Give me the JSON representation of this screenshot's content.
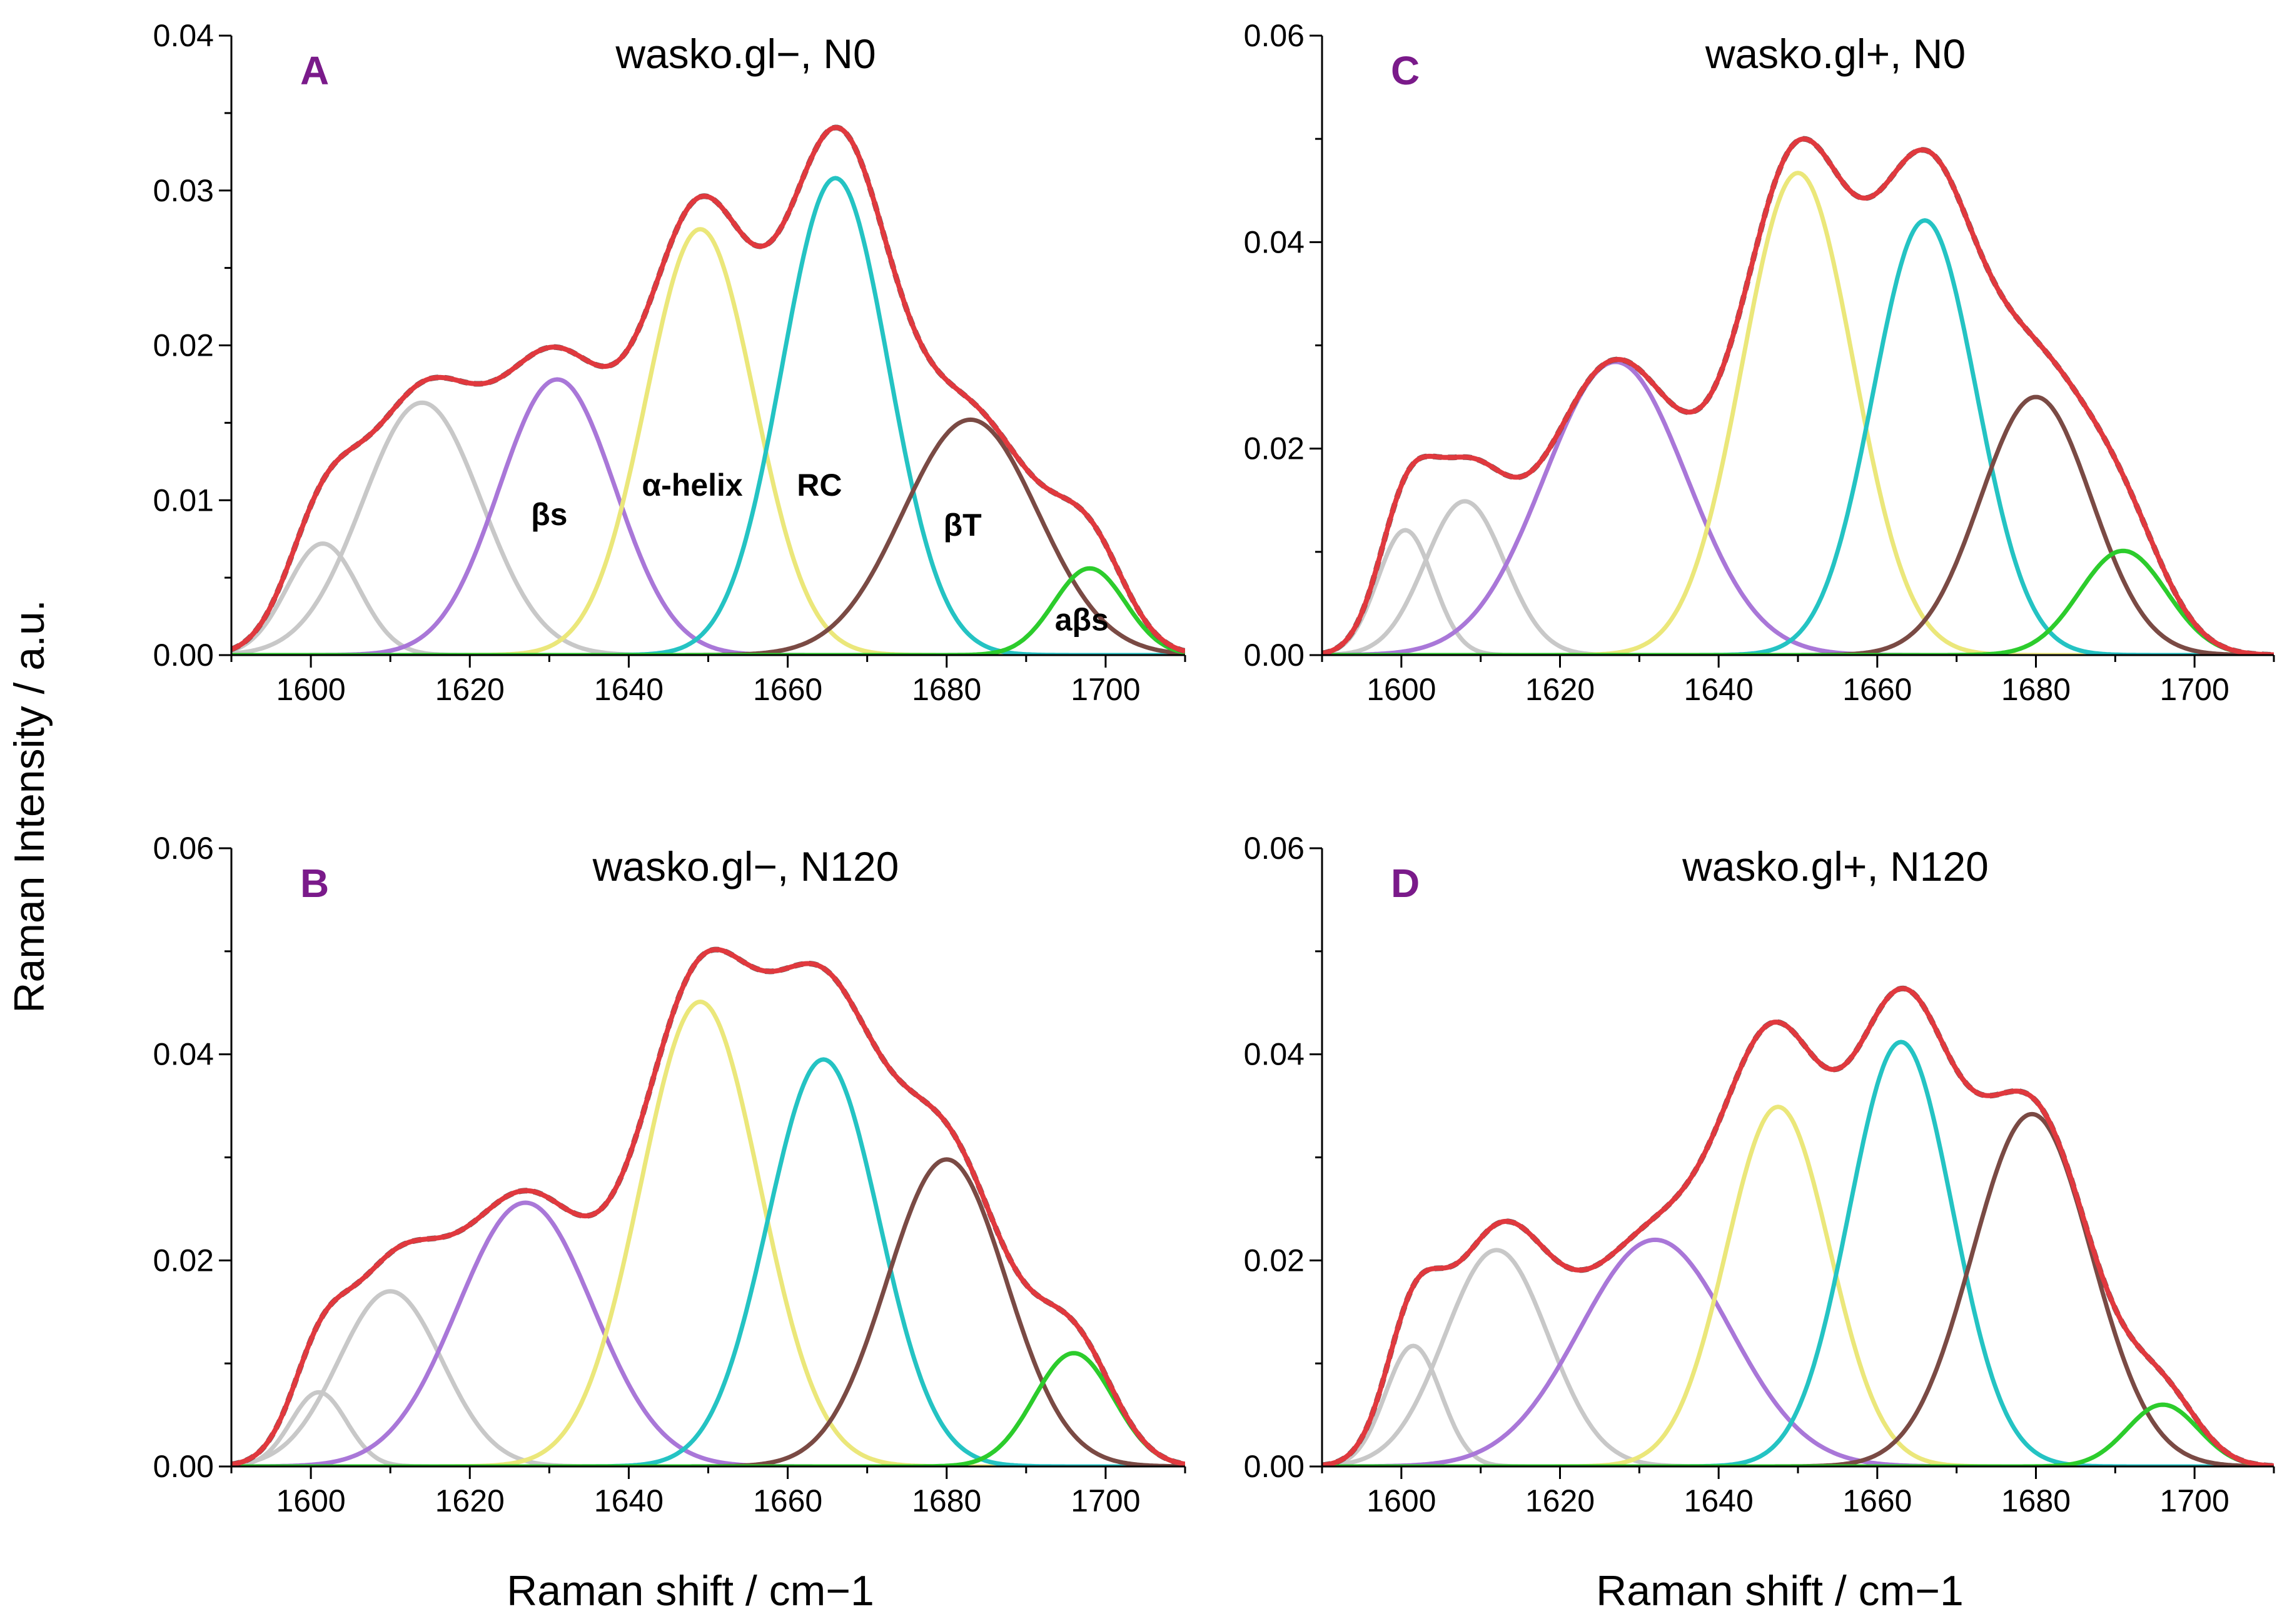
{
  "figure": {
    "ylabel": "Raman Intensity / a.u.",
    "xlabel": "Raman shift / cm−1",
    "colors": {
      "envelope": "#e0393e",
      "measured": "#555555",
      "band_gray": "#c8c8c8",
      "band_bs": "#a977d8",
      "band_ahelix": "#ebe77a",
      "band_rc": "#24c3c3",
      "band_bt": "#7a4a44",
      "band_abs": "#2ccc2c",
      "letter": "#7a1a8a"
    }
  },
  "chart_data": [
    {
      "type": "line",
      "panel": "A",
      "title": "wasko.gl−, N0",
      "xlim": [
        1590,
        1710
      ],
      "ylim": [
        0,
        0.04
      ],
      "yticks": [
        "0.00",
        "0.01",
        "0.02",
        "0.03",
        "0.04"
      ],
      "xticks": [
        "1600",
        "1620",
        "1640",
        "1660",
        "1680",
        "1700"
      ],
      "xtick_values": [
        1600,
        1620,
        1640,
        1660,
        1680,
        1700
      ],
      "ytick_values": [
        0,
        0.01,
        0.02,
        0.03,
        0.04
      ],
      "band_labels": [
        {
          "text": "βs",
          "x": 1630,
          "y": 0.0084
        },
        {
          "text": "α-helix",
          "x": 1648,
          "y": 0.0103
        },
        {
          "text": "RC",
          "x": 1664,
          "y": 0.0103
        },
        {
          "text": "βT",
          "x": 1682,
          "y": 0.0077
        },
        {
          "text": "aβs",
          "x": 1697,
          "y": 0.0016
        }
      ],
      "series": [
        {
          "name": "band-1",
          "color_key": "band_gray",
          "center": 1601.5,
          "height": 0.0072,
          "sigma": 4.5
        },
        {
          "name": "band-2",
          "color_key": "band_gray",
          "center": 1614,
          "height": 0.0163,
          "sigma": 7.5
        },
        {
          "name": "beta-sheet",
          "color_key": "band_bs",
          "center": 1631,
          "height": 0.0178,
          "sigma": 7.3
        },
        {
          "name": "alpha-helix",
          "color_key": "band_ahelix",
          "center": 1649,
          "height": 0.0275,
          "sigma": 6.8
        },
        {
          "name": "random-coil",
          "color_key": "band_rc",
          "center": 1666,
          "height": 0.0308,
          "sigma": 6.7
        },
        {
          "name": "beta-turn",
          "color_key": "band_bt",
          "center": 1683,
          "height": 0.0152,
          "sigma": 8.5
        },
        {
          "name": "anti-beta-sheet",
          "color_key": "band_abs",
          "center": 1698,
          "height": 0.0056,
          "sigma": 4.5
        }
      ]
    },
    {
      "type": "line",
      "panel": "B",
      "title": "wasko.gl−, N120",
      "xlim": [
        1590,
        1710
      ],
      "ylim": [
        0,
        0.06
      ],
      "yticks": [
        "0.00",
        "0.02",
        "0.04",
        "0.06"
      ],
      "xticks": [
        "1600",
        "1620",
        "1640",
        "1660",
        "1680",
        "1700"
      ],
      "xtick_values": [
        1600,
        1620,
        1640,
        1660,
        1680,
        1700
      ],
      "ytick_values": [
        0,
        0.02,
        0.04,
        0.06
      ],
      "band_labels": [],
      "series": [
        {
          "name": "band-1",
          "color_key": "band_gray",
          "center": 1601,
          "height": 0.0072,
          "sigma": 3.5
        },
        {
          "name": "band-2",
          "color_key": "band_gray",
          "center": 1610,
          "height": 0.017,
          "sigma": 6.5
        },
        {
          "name": "beta-sheet",
          "color_key": "band_bs",
          "center": 1627,
          "height": 0.0256,
          "sigma": 8.5
        },
        {
          "name": "alpha-helix",
          "color_key": "band_ahelix",
          "center": 1649,
          "height": 0.0451,
          "sigma": 7.5
        },
        {
          "name": "random-coil",
          "color_key": "band_rc",
          "center": 1664.5,
          "height": 0.0395,
          "sigma": 7.0
        },
        {
          "name": "beta-turn",
          "color_key": "band_bt",
          "center": 1680,
          "height": 0.0298,
          "sigma": 7.5
        },
        {
          "name": "anti-beta-sheet",
          "color_key": "band_abs",
          "center": 1696,
          "height": 0.011,
          "sigma": 5.0
        }
      ]
    },
    {
      "type": "line",
      "panel": "C",
      "title": "wasko.gl+, N0",
      "xlim": [
        1590,
        1710
      ],
      "ylim": [
        0,
        0.06
      ],
      "yticks": [
        "0.00",
        "0.02",
        "0.04",
        "0.06"
      ],
      "xticks": [
        "1600",
        "1620",
        "1640",
        "1660",
        "1680",
        "1700"
      ],
      "xtick_values": [
        1600,
        1620,
        1640,
        1660,
        1680,
        1700
      ],
      "ytick_values": [
        0,
        0.02,
        0.04,
        0.06
      ],
      "band_labels": [],
      "series": [
        {
          "name": "band-1",
          "color_key": "band_gray",
          "center": 1600.5,
          "height": 0.0121,
          "sigma": 3.5
        },
        {
          "name": "band-2",
          "color_key": "band_gray",
          "center": 1608,
          "height": 0.0149,
          "sigma": 5.0
        },
        {
          "name": "beta-sheet",
          "color_key": "band_bs",
          "center": 1627,
          "height": 0.0284,
          "sigma": 9.0
        },
        {
          "name": "alpha-helix",
          "color_key": "band_ahelix",
          "center": 1650,
          "height": 0.0467,
          "sigma": 7.0
        },
        {
          "name": "random-coil",
          "color_key": "band_rc",
          "center": 1666,
          "height": 0.0421,
          "sigma": 6.5
        },
        {
          "name": "beta-turn",
          "color_key": "band_bt",
          "center": 1680,
          "height": 0.025,
          "sigma": 7.0
        },
        {
          "name": "anti-beta-sheet",
          "color_key": "band_abs",
          "center": 1691,
          "height": 0.0101,
          "sigma": 5.5
        }
      ]
    },
    {
      "type": "line",
      "panel": "D",
      "title": "wasko.gl+, N120",
      "xlim": [
        1590,
        1710
      ],
      "ylim": [
        0,
        0.06
      ],
      "yticks": [
        "0.00",
        "0.02",
        "0.04",
        "0.06"
      ],
      "xticks": [
        "1600",
        "1620",
        "1640",
        "1660",
        "1680",
        "1700"
      ],
      "xtick_values": [
        1600,
        1620,
        1640,
        1660,
        1680,
        1700
      ],
      "ytick_values": [
        0,
        0.02,
        0.04,
        0.06
      ],
      "band_labels": [],
      "series": [
        {
          "name": "band-1",
          "color_key": "band_gray",
          "center": 1601.5,
          "height": 0.0117,
          "sigma": 3.5
        },
        {
          "name": "band-2",
          "color_key": "band_gray",
          "center": 1612,
          "height": 0.021,
          "sigma": 6.5
        },
        {
          "name": "beta-sheet",
          "color_key": "band_bs",
          "center": 1632,
          "height": 0.022,
          "sigma": 9.5
        },
        {
          "name": "alpha-helix",
          "color_key": "band_ahelix",
          "center": 1647.5,
          "height": 0.0349,
          "sigma": 6.5
        },
        {
          "name": "random-coil",
          "color_key": "band_rc",
          "center": 1663,
          "height": 0.0412,
          "sigma": 6.5
        },
        {
          "name": "beta-turn",
          "color_key": "band_bt",
          "center": 1679.5,
          "height": 0.0342,
          "sigma": 7.5
        },
        {
          "name": "anti-beta-sheet",
          "color_key": "band_abs",
          "center": 1696,
          "height": 0.006,
          "sigma": 4.5
        }
      ]
    }
  ]
}
